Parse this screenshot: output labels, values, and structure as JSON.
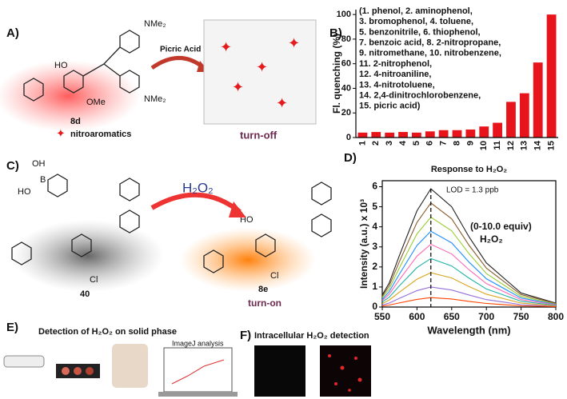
{
  "chart_data": [
    {
      "type": "bar",
      "panel_label": "B)",
      "ylabel": "Fl. quenching (%)",
      "categories": [
        "1",
        "2",
        "3",
        "4",
        "5",
        "6",
        "7",
        "8",
        "9",
        "10",
        "11",
        "12",
        "13",
        "14",
        "15"
      ],
      "values": [
        4,
        4.5,
        4,
        4.5,
        4,
        5,
        6,
        6,
        6.5,
        9,
        12,
        29,
        36,
        61,
        100
      ],
      "color": "#e8141c",
      "ylim": [
        0,
        104
      ],
      "yticks": [
        0,
        20,
        40,
        60,
        80,
        100
      ],
      "annotation_lines": [
        "(1. phenol, 2. aminophenol,",
        "3. bromophenol, 4. toluene,",
        "5. benzonitrile, 6. thiophenol,",
        "7. benzoic acid, 8. 2-nitropropane,",
        "9.  nitromethane, 10. nitrobenzene,",
        "11. 2-nitrophenol,",
        "12. 4-nitroaniline,",
        "13. 4-nitrotoluene,",
        "14. 2,4-dinitrochlorobenzene,",
        "15. picric acid)"
      ]
    },
    {
      "type": "line",
      "panel_label": "D)",
      "title": "Response to H₂O₂",
      "xlabel": "Wavelength (nm)",
      "ylabel": "Intensity (a.u.) x 10³",
      "annotations": [
        "LOD = 1.3 ppb",
        "(0-10.0 equiv)",
        "H₂O₂"
      ],
      "x": [
        550,
        560,
        575,
        600,
        620,
        650,
        675,
        700,
        750,
        800
      ],
      "series": [
        {
          "color": "#222222",
          "values": [
            0.6,
            1.2,
            2.6,
            4.8,
            5.9,
            5.0,
            3.5,
            2.2,
            0.7,
            0.2
          ]
        },
        {
          "color": "#8b5a2b",
          "values": [
            0.53,
            1.06,
            2.29,
            4.22,
            5.19,
            4.4,
            3.08,
            1.94,
            0.62,
            0.18
          ]
        },
        {
          "color": "#9acd32",
          "values": [
            0.46,
            0.91,
            1.98,
            3.65,
            4.48,
            3.8,
            2.66,
            1.67,
            0.53,
            0.15
          ]
        },
        {
          "color": "#1e90ff",
          "values": [
            0.38,
            0.77,
            1.66,
            3.07,
            3.78,
            3.2,
            2.24,
            1.41,
            0.45,
            0.13
          ]
        },
        {
          "color": "#ff69b4",
          "values": [
            0.32,
            0.64,
            1.38,
            2.54,
            3.13,
            2.65,
            1.86,
            1.17,
            0.37,
            0.11
          ]
        },
        {
          "color": "#20b2aa",
          "values": [
            0.25,
            0.49,
            1.07,
            1.97,
            2.42,
            2.05,
            1.44,
            0.9,
            0.29,
            0.08
          ]
        },
        {
          "color": "#daa520",
          "values": [
            0.17,
            0.35,
            0.75,
            1.39,
            1.71,
            1.45,
            1.02,
            0.64,
            0.2,
            0.06
          ]
        },
        {
          "color": "#9370db",
          "values": [
            0.1,
            0.2,
            0.44,
            0.82,
            1.0,
            0.85,
            0.6,
            0.37,
            0.12,
            0.03
          ]
        },
        {
          "color": "#ff4500",
          "values": [
            0.05,
            0.1,
            0.21,
            0.38,
            0.47,
            0.4,
            0.28,
            0.18,
            0.06,
            0.02
          ]
        }
      ],
      "xlim": [
        550,
        800
      ],
      "xticks": [
        550,
        600,
        650,
        700,
        750,
        800
      ],
      "ylim": [
        0,
        6.3
      ],
      "yticks": [
        0,
        1,
        2,
        3,
        4,
        5,
        6
      ]
    }
  ],
  "panel_a": {
    "label": "A)",
    "compound": "8d",
    "reagent": "Picric Acid",
    "legend": "nitroaromatics",
    "result": "turn-off",
    "groups": [
      "NMe₂",
      "NMe₂",
      "OMe",
      "HO"
    ]
  },
  "panel_c": {
    "label": "C)",
    "reagent": "H₂O₂",
    "reactant": "40",
    "product": "8e",
    "result": "turn-on",
    "groups": [
      "HO",
      "OH",
      "B",
      "Cl",
      "Cl",
      "HO"
    ]
  },
  "panel_e": {
    "label": "E)",
    "title": "Detection of H₂O₂ on solid phase",
    "software": "ImageJ analysis"
  },
  "panel_f": {
    "label": "F)",
    "title": "Intracellular H₂O₂ detection"
  }
}
